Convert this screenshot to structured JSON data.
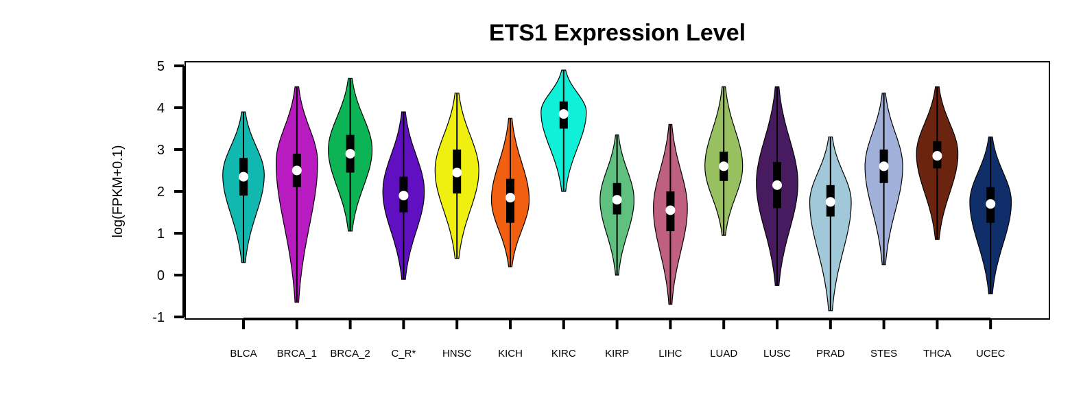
{
  "chart_data": {
    "type": "violin",
    "title": "ETS1 Expression Level",
    "ylabel": "log(FPKM+0.1)",
    "ylim": [
      -1,
      5
    ],
    "yticks": [
      5,
      4,
      3,
      2,
      1,
      0,
      -1
    ],
    "categories": [
      "BLCA",
      "BRCA_1",
      "BRCA_2",
      "C_R*",
      "HNSC",
      "KICH",
      "KIRC",
      "KIRP",
      "LIHC",
      "LUAD",
      "LUSC",
      "PRAD",
      "STES",
      "THCA",
      "UCEC"
    ],
    "series": [
      {
        "category": "BLCA",
        "color": "#10B8B0",
        "min": 0.3,
        "max": 3.9,
        "q1": 1.9,
        "median": 2.35,
        "q3": 2.8,
        "mode": 2.4,
        "width": 0.55
      },
      {
        "category": "BRCA_1",
        "color": "#B81CC0",
        "min": -0.65,
        "max": 4.5,
        "q1": 2.1,
        "median": 2.5,
        "q3": 2.9,
        "mode": 2.7,
        "width": 0.55
      },
      {
        "category": "BRCA_2",
        "color": "#0CB456",
        "min": 1.05,
        "max": 4.7,
        "q1": 2.45,
        "median": 2.9,
        "q3": 3.35,
        "mode": 3.0,
        "width": 0.58
      },
      {
        "category": "C_R*",
        "color": "#6010C0",
        "min": -0.1,
        "max": 3.9,
        "q1": 1.5,
        "median": 1.9,
        "q3": 2.35,
        "mode": 2.0,
        "width": 0.55
      },
      {
        "category": "HNSC",
        "color": "#F0F010",
        "min": 0.4,
        "max": 4.35,
        "q1": 1.95,
        "median": 2.45,
        "q3": 3.0,
        "mode": 2.5,
        "width": 0.58
      },
      {
        "category": "KICH",
        "color": "#F06010",
        "min": 0.2,
        "max": 3.75,
        "q1": 1.25,
        "median": 1.85,
        "q3": 2.3,
        "mode": 1.8,
        "width": 0.5
      },
      {
        "category": "KIRC",
        "color": "#10F0D8",
        "min": 2.0,
        "max": 4.9,
        "q1": 3.5,
        "median": 3.85,
        "q3": 4.15,
        "mode": 3.9,
        "width": 0.6
      },
      {
        "category": "KIRP",
        "color": "#60C080",
        "min": 0.0,
        "max": 3.35,
        "q1": 1.45,
        "median": 1.8,
        "q3": 2.2,
        "mode": 1.8,
        "width": 0.45
      },
      {
        "category": "LIHC",
        "color": "#C06080",
        "min": -0.7,
        "max": 3.6,
        "q1": 1.05,
        "median": 1.55,
        "q3": 2.0,
        "mode": 1.6,
        "width": 0.45
      },
      {
        "category": "LUAD",
        "color": "#98C060",
        "min": 0.95,
        "max": 4.5,
        "q1": 2.25,
        "median": 2.6,
        "q3": 2.95,
        "mode": 2.6,
        "width": 0.5
      },
      {
        "category": "LUSC",
        "color": "#481A60",
        "min": -0.25,
        "max": 4.5,
        "q1": 1.6,
        "median": 2.15,
        "q3": 2.7,
        "mode": 2.2,
        "width": 0.55
      },
      {
        "category": "PRAD",
        "color": "#A0C8D8",
        "min": -0.85,
        "max": 3.3,
        "q1": 1.4,
        "median": 1.75,
        "q3": 2.15,
        "mode": 1.75,
        "width": 0.55
      },
      {
        "category": "STES",
        "color": "#A0B0D8",
        "min": 0.25,
        "max": 4.35,
        "q1": 2.2,
        "median": 2.6,
        "q3": 3.0,
        "mode": 2.6,
        "width": 0.5
      },
      {
        "category": "THCA",
        "color": "#6A2410",
        "min": 0.85,
        "max": 4.5,
        "q1": 2.55,
        "median": 2.85,
        "q3": 3.2,
        "mode": 2.9,
        "width": 0.55
      },
      {
        "category": "UCEC",
        "color": "#102E6A",
        "min": -0.45,
        "max": 3.3,
        "q1": 1.25,
        "median": 1.7,
        "q3": 2.1,
        "mode": 1.75,
        "width": 0.55
      }
    ]
  }
}
